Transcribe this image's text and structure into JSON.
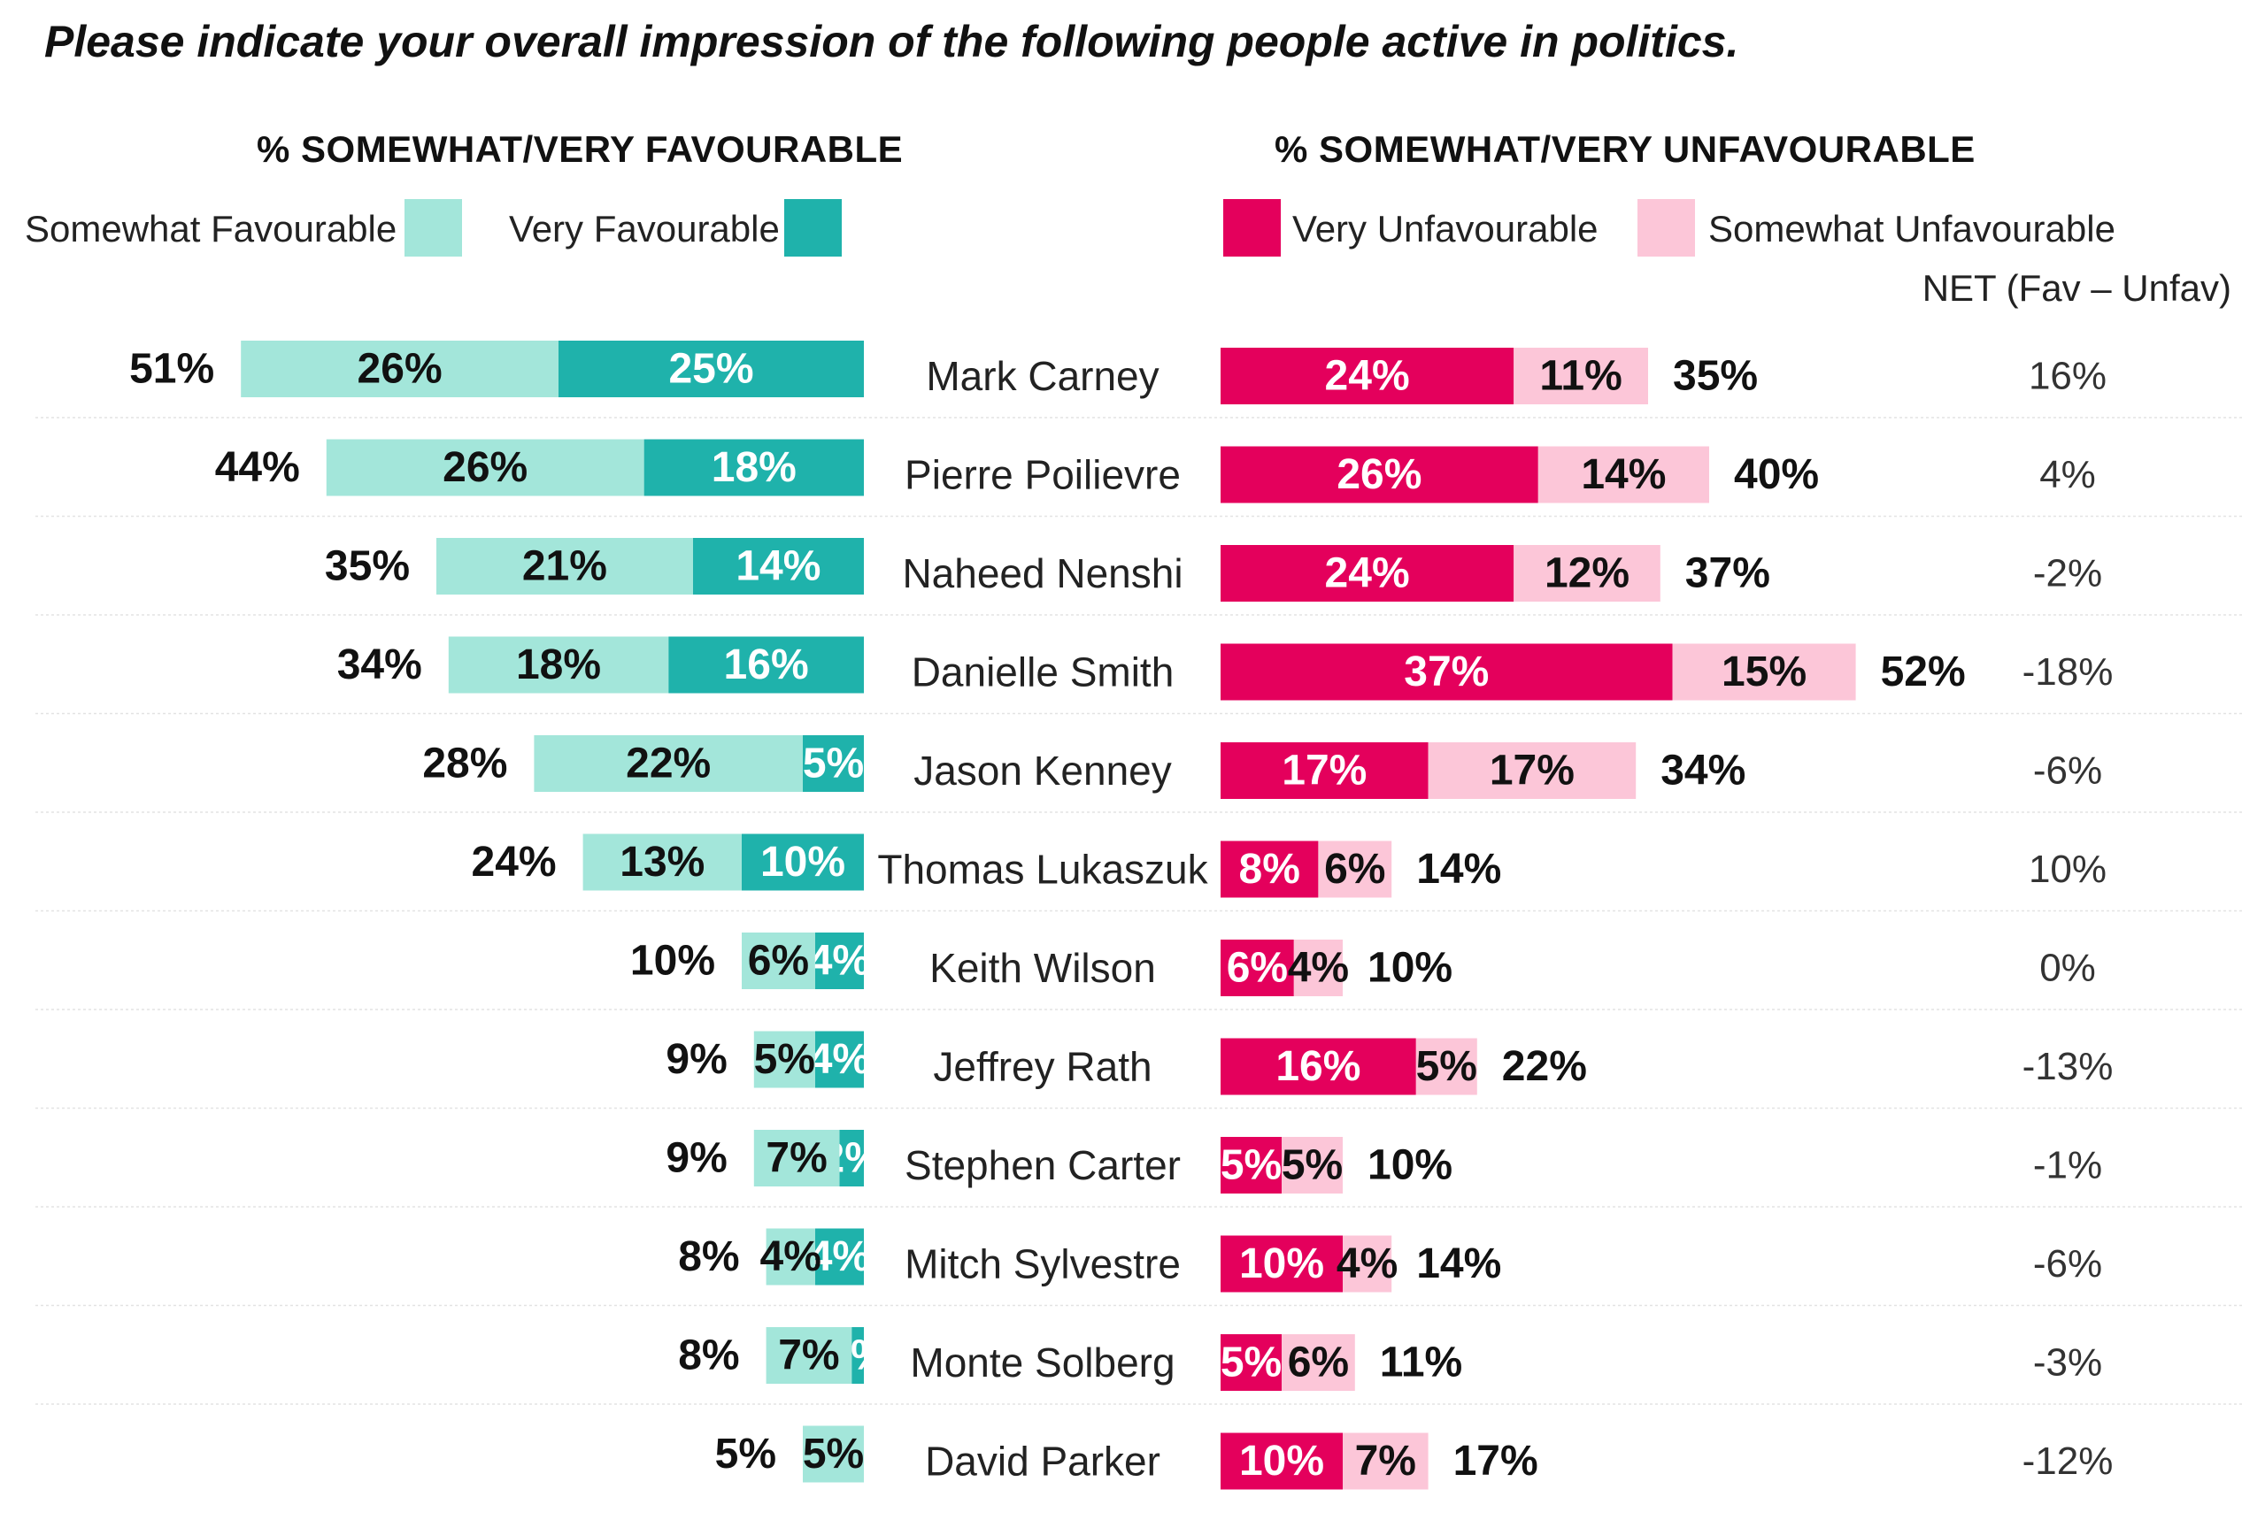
{
  "title": "Please indicate your overall impression of the following people active in politics.",
  "headers": {
    "favourable": "% SOMEWHAT/VERY FAVOURABLE",
    "unfavourable": "% SOMEWHAT/VERY UNFAVOURABLE",
    "net": "NET (Fav – Unfav)"
  },
  "legend": {
    "somewhat_favourable": "Somewhat Favourable",
    "very_favourable": "Very Favourable",
    "very_unfavourable": "Very Unfavourable",
    "somewhat_unfavourable": "Somewhat Unfavourable"
  },
  "colors": {
    "somewhat_favourable": "#a3e6da",
    "very_favourable": "#1fb2ab",
    "very_unfavourable": "#e4005c",
    "somewhat_unfavourable": "#fcc6d8"
  },
  "chart_data": {
    "type": "bar",
    "orientation": "horizontal-diverging",
    "categories": [
      "Mark Carney",
      "Pierre Poilievre",
      "Naheed Nenshi",
      "Danielle Smith",
      "Jason Kenney",
      "Thomas Lukaszuk",
      "Keith Wilson",
      "Jeffrey Rath",
      "Stephen Carter",
      "Mitch Sylvestre",
      "Monte Solberg",
      "David Parker"
    ],
    "series": [
      {
        "name": "Somewhat Favourable",
        "values": [
          26,
          26,
          21,
          18,
          22,
          13,
          6,
          5,
          7,
          4,
          7,
          5
        ]
      },
      {
        "name": "Very Favourable",
        "values": [
          25,
          18,
          14,
          16,
          5,
          10,
          4,
          4,
          2,
          4,
          1,
          0
        ]
      },
      {
        "name": "Very Unfavourable",
        "values": [
          24,
          26,
          24,
          37,
          17,
          8,
          6,
          16,
          5,
          10,
          5,
          10
        ]
      },
      {
        "name": "Somewhat Unfavourable",
        "values": [
          11,
          14,
          12,
          15,
          17,
          6,
          4,
          5,
          5,
          4,
          6,
          7
        ]
      }
    ],
    "fav_totals": [
      51,
      44,
      35,
      34,
      28,
      24,
      10,
      9,
      9,
      8,
      8,
      5
    ],
    "unfav_totals": [
      35,
      40,
      37,
      52,
      34,
      14,
      10,
      22,
      10,
      14,
      11,
      17
    ],
    "net": [
      "16%",
      "4%",
      "-2%",
      "-18%",
      "-6%",
      "10%",
      "0%",
      "-13%",
      "-1%",
      "-6%",
      "-3%",
      "-12%"
    ],
    "unit": "%"
  }
}
